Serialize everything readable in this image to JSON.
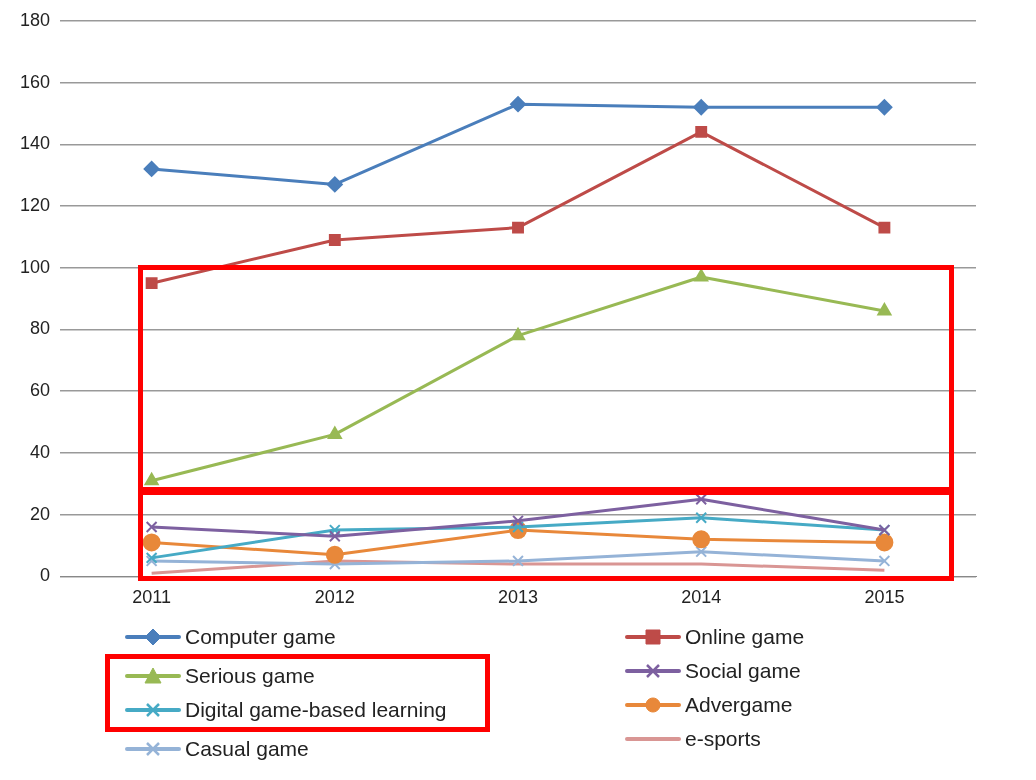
{
  "chart_data": {
    "type": "line",
    "categories": [
      "2011",
      "2012",
      "2013",
      "2014",
      "2015"
    ],
    "ylim": [
      0,
      180
    ],
    "yticks": [
      0,
      20,
      40,
      60,
      80,
      100,
      120,
      140,
      160,
      180
    ],
    "grid": "y",
    "legend": "bottom",
    "line_style": "solid",
    "series": [
      {
        "name": "Computer game",
        "color": "#4a7ebb",
        "marker": "diamond",
        "values": [
          132,
          127,
          153,
          152,
          152
        ]
      },
      {
        "name": "Online game",
        "color": "#be4b48",
        "marker": "square",
        "values": [
          95,
          109,
          113,
          144,
          113
        ]
      },
      {
        "name": "Serious game",
        "color": "#98b954",
        "marker": "triangle",
        "values": [
          31,
          46,
          78,
          97,
          86
        ]
      },
      {
        "name": "Social game",
        "color": "#7d60a0",
        "marker": "cross",
        "values": [
          16,
          13,
          18,
          25,
          15
        ]
      },
      {
        "name": "Digital game-based learning",
        "color": "#46aac5",
        "marker": "cross",
        "values": [
          6,
          15,
          16,
          19,
          15
        ]
      },
      {
        "name": "Advergame",
        "color": "#e8883a",
        "marker": "circle",
        "values": [
          11,
          7,
          15,
          12,
          11
        ]
      },
      {
        "name": "Casual game",
        "color": "#95b3d7",
        "marker": "cross",
        "values": [
          5,
          4,
          5,
          8,
          5
        ]
      },
      {
        "name": "e-sports",
        "color": "#d99694",
        "marker": "none",
        "values": [
          1,
          5,
          4,
          4,
          2
        ]
      }
    ]
  }
}
